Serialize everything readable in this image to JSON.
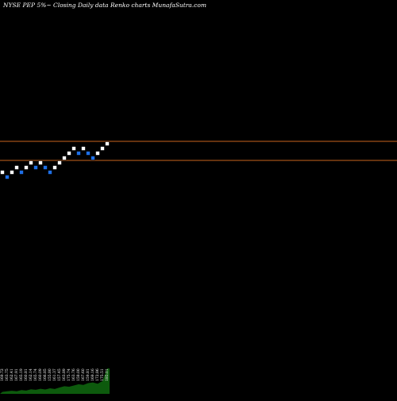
{
  "chart_data": {
    "type": "renko",
    "title": "NYSE PEP 5%~  Closing Daily data Renko charts MunafaSutra.com",
    "colors": {
      "background": "#000000",
      "up_brick": "#ffffff",
      "down_brick": "#1e6fe6",
      "reference_line": "#c8641e",
      "volume": "#0d5a0d",
      "text": "#ffffff"
    },
    "reference_lines": [
      {
        "name": "upper",
        "value": 7
      },
      {
        "name": "lower",
        "value": 3
      }
    ],
    "bricks": [
      {
        "index": 0,
        "level": 0,
        "direction": "up"
      },
      {
        "index": 1,
        "level": -1,
        "direction": "down"
      },
      {
        "index": 2,
        "level": 0,
        "direction": "up"
      },
      {
        "index": 3,
        "level": 1,
        "direction": "up"
      },
      {
        "index": 4,
        "level": 0,
        "direction": "down"
      },
      {
        "index": 5,
        "level": 1,
        "direction": "up"
      },
      {
        "index": 6,
        "level": 2,
        "direction": "up"
      },
      {
        "index": 7,
        "level": 1,
        "direction": "down"
      },
      {
        "index": 8,
        "level": 2,
        "direction": "up"
      },
      {
        "index": 9,
        "level": 1,
        "direction": "down"
      },
      {
        "index": 10,
        "level": 0,
        "direction": "down"
      },
      {
        "index": 11,
        "level": 1,
        "direction": "up"
      },
      {
        "index": 12,
        "level": 2,
        "direction": "up"
      },
      {
        "index": 13,
        "level": 3,
        "direction": "up"
      },
      {
        "index": 14,
        "level": 4,
        "direction": "up"
      },
      {
        "index": 15,
        "level": 5,
        "direction": "up"
      },
      {
        "index": 16,
        "level": 4,
        "direction": "down"
      },
      {
        "index": 17,
        "level": 5,
        "direction": "up"
      },
      {
        "index": 18,
        "level": 4,
        "direction": "down"
      },
      {
        "index": 19,
        "level": 3,
        "direction": "down"
      },
      {
        "index": 20,
        "level": 4,
        "direction": "up"
      },
      {
        "index": 21,
        "level": 5,
        "direction": "up"
      },
      {
        "index": 22,
        "level": 6,
        "direction": "up"
      }
    ],
    "price_labels": [
      "169.72",
      "163.75",
      "162.41",
      "167.91",
      "165.19",
      "160.81",
      "162.14",
      "165.74",
      "160.09",
      "166.85",
      "155.80",
      "161.37",
      "157.45",
      "163.89",
      "175.74",
      "163.76",
      "158.00",
      "167.60",
      "159.81",
      "169.16",
      "172.86",
      "175.51",
      "185.01"
    ],
    "volume": [
      0.08,
      0.1,
      0.12,
      0.1,
      0.15,
      0.13,
      0.18,
      0.16,
      0.2,
      0.17,
      0.22,
      0.19,
      0.25,
      0.3,
      0.28,
      0.33,
      0.38,
      0.35,
      0.42,
      0.45,
      0.4,
      0.5,
      1.0
    ]
  }
}
